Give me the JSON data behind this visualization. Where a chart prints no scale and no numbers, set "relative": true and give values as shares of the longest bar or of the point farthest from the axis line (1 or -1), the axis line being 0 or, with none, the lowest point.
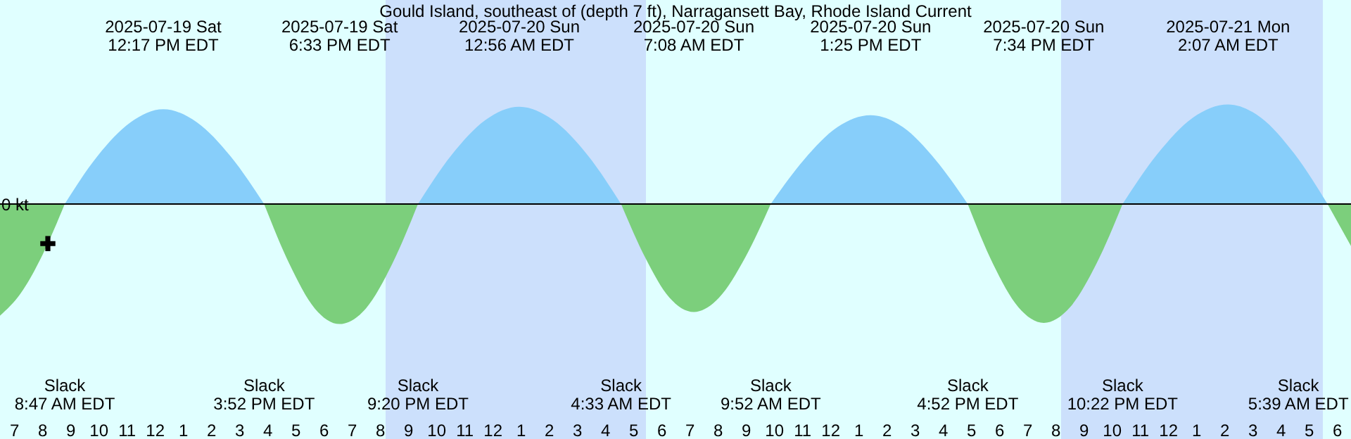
{
  "chart_data": {
    "type": "area",
    "title": "Gould Island, southeast of (depth 7 ft), Narragansett Bay, Rhode Island Current",
    "relative": true,
    "x": [
      "2025-07-19T06:29",
      "2025-07-19T07:12",
      "2025-07-19T08:00",
      "2025-07-19T08:47",
      "2025-07-19T09:57",
      "2025-07-19T11:07",
      "2025-07-19T12:17",
      "2025-07-19T13:29",
      "2025-07-19T14:40",
      "2025-07-19T15:52",
      "2025-07-19T16:46",
      "2025-07-19T17:40",
      "2025-07-19T18:33",
      "2025-07-19T19:29",
      "2025-07-19T20:25",
      "2025-07-19T21:20",
      "2025-07-19T22:32",
      "2025-07-19T23:44",
      "2025-07-20T00:56",
      "2025-07-20T02:08",
      "2025-07-20T03:21",
      "2025-07-20T04:33",
      "2025-07-20T05:25",
      "2025-07-20T06:16",
      "2025-07-20T07:08",
      "2025-07-20T08:02",
      "2025-07-20T08:57",
      "2025-07-20T09:52",
      "2025-07-20T11:03",
      "2025-07-20T12:14",
      "2025-07-20T13:25",
      "2025-07-20T14:34",
      "2025-07-20T15:43",
      "2025-07-20T16:52",
      "2025-07-20T17:46",
      "2025-07-20T18:40",
      "2025-07-20T19:34",
      "2025-07-20T20:30",
      "2025-07-20T21:26",
      "2025-07-20T22:22",
      "2025-07-20T23:37",
      "2025-07-21T00:52",
      "2025-07-21T02:07",
      "2025-07-21T03:17",
      "2025-07-21T04:28",
      "2025-07-21T05:39",
      "2025-07-21T06:29"
    ],
    "series": [
      {
        "color": "#87cefa",
        "values": [
          null,
          null,
          null,
          0,
          0.4,
          0.68,
          0.79,
          0.68,
          0.4,
          0,
          null,
          null,
          null,
          null,
          null,
          0,
          0.41,
          0.7,
          0.81,
          0.7,
          0.41,
          0,
          null,
          null,
          null,
          null,
          null,
          0,
          0.37,
          0.64,
          0.74,
          0.64,
          0.37,
          0,
          null,
          null,
          null,
          null,
          null,
          0,
          0.42,
          0.72,
          0.83,
          0.72,
          0.42,
          0,
          null
        ]
      },
      {
        "color": "#7ccf7c",
        "values": [
          -0.93,
          -0.75,
          -0.42,
          0,
          null,
          null,
          null,
          null,
          null,
          0,
          -0.5,
          -0.87,
          -1,
          -0.87,
          -0.5,
          0,
          null,
          null,
          null,
          null,
          null,
          0,
          -0.45,
          -0.78,
          -0.9,
          -0.78,
          -0.45,
          0,
          null,
          null,
          null,
          null,
          null,
          0,
          -0.5,
          -0.86,
          -0.99,
          -0.86,
          -0.5,
          0,
          null,
          null,
          null,
          null,
          null,
          0,
          -0.35
        ]
      },
      {
        "type": "scatter",
        "color": "#000000",
        "marker": "cross",
        "x": [
          "2025-07-19T08:11"
        ],
        "values": [
          -0.33
        ]
      }
    ],
    "xlim": [
      "2025-07-19T06:29",
      "2025-07-21T06:29"
    ],
    "xticks": [
      {
        "value": "2025-07-19T07:00",
        "label": "7"
      },
      {
        "value": "2025-07-19T08:00",
        "label": "8"
      },
      {
        "value": "2025-07-19T09:00",
        "label": "9"
      },
      {
        "value": "2025-07-19T10:00",
        "label": "10"
      },
      {
        "value": "2025-07-19T11:00",
        "label": "11"
      },
      {
        "value": "2025-07-19T12:00",
        "label": "12"
      },
      {
        "value": "2025-07-19T13:00",
        "label": "1"
      },
      {
        "value": "2025-07-19T14:00",
        "label": "2"
      },
      {
        "value": "2025-07-19T15:00",
        "label": "3"
      },
      {
        "value": "2025-07-19T16:00",
        "label": "4"
      },
      {
        "value": "2025-07-19T17:00",
        "label": "5"
      },
      {
        "value": "2025-07-19T18:00",
        "label": "6"
      },
      {
        "value": "2025-07-19T19:00",
        "label": "7"
      },
      {
        "value": "2025-07-19T20:00",
        "label": "8"
      },
      {
        "value": "2025-07-19T21:00",
        "label": "9"
      },
      {
        "value": "2025-07-19T22:00",
        "label": "10"
      },
      {
        "value": "2025-07-19T23:00",
        "label": "11"
      },
      {
        "value": "2025-07-20T00:00",
        "label": "12"
      },
      {
        "value": "2025-07-20T01:00",
        "label": "1"
      },
      {
        "value": "2025-07-20T02:00",
        "label": "2"
      },
      {
        "value": "2025-07-20T03:00",
        "label": "3"
      },
      {
        "value": "2025-07-20T04:00",
        "label": "4"
      },
      {
        "value": "2025-07-20T05:00",
        "label": "5"
      },
      {
        "value": "2025-07-20T06:00",
        "label": "6"
      },
      {
        "value": "2025-07-20T07:00",
        "label": "7"
      },
      {
        "value": "2025-07-20T08:00",
        "label": "8"
      },
      {
        "value": "2025-07-20T09:00",
        "label": "9"
      },
      {
        "value": "2025-07-20T10:00",
        "label": "10"
      },
      {
        "value": "2025-07-20T11:00",
        "label": "11"
      },
      {
        "value": "2025-07-20T12:00",
        "label": "12"
      },
      {
        "value": "2025-07-20T13:00",
        "label": "1"
      },
      {
        "value": "2025-07-20T14:00",
        "label": "2"
      },
      {
        "value": "2025-07-20T15:00",
        "label": "3"
      },
      {
        "value": "2025-07-20T16:00",
        "label": "4"
      },
      {
        "value": "2025-07-20T17:00",
        "label": "5"
      },
      {
        "value": "2025-07-20T18:00",
        "label": "6"
      },
      {
        "value": "2025-07-20T19:00",
        "label": "7"
      },
      {
        "value": "2025-07-20T20:00",
        "label": "8"
      },
      {
        "value": "2025-07-20T21:00",
        "label": "9"
      },
      {
        "value": "2025-07-20T22:00",
        "label": "10"
      },
      {
        "value": "2025-07-20T23:00",
        "label": "11"
      },
      {
        "value": "2025-07-21T00:00",
        "label": "12"
      },
      {
        "value": "2025-07-21T01:00",
        "label": "1"
      },
      {
        "value": "2025-07-21T02:00",
        "label": "2"
      },
      {
        "value": "2025-07-21T03:00",
        "label": "3"
      },
      {
        "value": "2025-07-21T04:00",
        "label": "4"
      },
      {
        "value": "2025-07-21T05:00",
        "label": "5"
      },
      {
        "value": "2025-07-21T06:00",
        "label": "6"
      }
    ],
    "ref_lines": [
      {
        "axis": "y",
        "value": 0,
        "label": "0 kt",
        "color": "#000000"
      }
    ],
    "bands": [
      {
        "axis": "x",
        "from": "2025-07-19T20:11",
        "to": "2025-07-20T05:26",
        "color": "#cce0fc"
      },
      {
        "axis": "x",
        "from": "2025-07-20T20:11",
        "to": "2025-07-21T05:29",
        "color": "#cce0fc"
      }
    ],
    "annotations": [
      "2025-07-19 Sat\n12:17 PM EDT",
      "2025-07-19 Sat\n6:33 PM EDT",
      "2025-07-20 Sun\n12:56 AM EDT",
      "2025-07-20 Sun\n7:08 AM EDT",
      "2025-07-20 Sun\n1:25 PM EDT",
      "2025-07-20 Sun\n7:34 PM EDT",
      "2025-07-21 Mon\n2:07 AM EDT",
      "Slack\n8:47 AM EDT",
      "Slack\n3:52 PM EDT",
      "Slack\n9:20 PM EDT",
      "Slack\n4:33 AM EDT",
      "Slack\n9:52 AM EDT",
      "Slack\n4:52 PM EDT",
      "Slack\n10:22 PM EDT",
      "Slack\n5:39 AM EDT"
    ],
    "grid": false,
    "legend": false
  }
}
